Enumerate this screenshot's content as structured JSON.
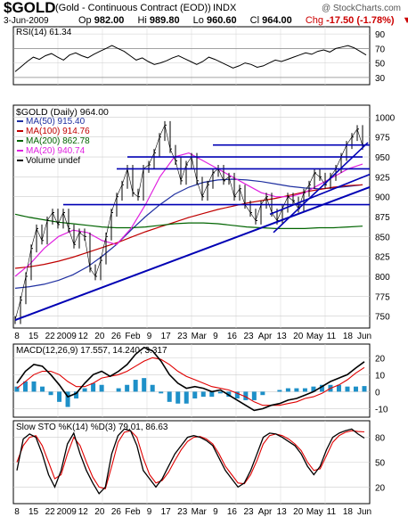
{
  "header": {
    "symbol": "$GOLD",
    "name": "(Gold - Continuous Contract (EOD))",
    "exchange": "INDX",
    "brand": "@ StockCharts.com",
    "date": "3-Jun-2009",
    "open_label": "Op",
    "open": "982.00",
    "high_label": "Hi",
    "high": "989.80",
    "low_label": "Lo",
    "low": "960.60",
    "close_label": "Cl",
    "close": "964.00",
    "change_label": "Chg",
    "change": "-17.50 (-1.78%)",
    "change_arrow": "▼"
  },
  "colors": {
    "price": "#000000",
    "ma50": "#1f2fa0",
    "ma100": "#c00000",
    "ma200": "#006400",
    "ma20": "#e020e0",
    "trendline": "#0000b4",
    "macd": "#000000",
    "signal": "#e00000",
    "histogram": "#1e90c8"
  },
  "chart_data": [
    {
      "type": "line",
      "title": "RSI(14) 61.34",
      "series": [
        {
          "name": "RSI(14)",
          "values": [
            38,
            45,
            52,
            58,
            55,
            60,
            63,
            58,
            54,
            61,
            64,
            60,
            57,
            62,
            66,
            70,
            74,
            70,
            66,
            60,
            54,
            57,
            52,
            48,
            50,
            53,
            57,
            60,
            56,
            52,
            48,
            52,
            58,
            55,
            51,
            47,
            43,
            46,
            50,
            48,
            44,
            46,
            50,
            54,
            52,
            55,
            58,
            61,
            64,
            62,
            66,
            68,
            65,
            70,
            72,
            74,
            71,
            66,
            61
          ]
        }
      ],
      "y_ticks": [
        90,
        70,
        50,
        30
      ],
      "ylim": [
        20,
        100
      ]
    },
    {
      "type": "line",
      "title": "$GOLD (Daily) 964.00",
      "legend": [
        "MA(50) 915.40",
        "MA(100) 914.76",
        "MA(200) 862.78",
        "MA(20) 940.74",
        "Volume undef"
      ],
      "x_labels": [
        "8",
        "15",
        "22",
        "2009",
        "12",
        "20",
        "26",
        "Feb",
        "9",
        "17",
        "23",
        "Mar",
        "9",
        "16",
        "23",
        "Apr",
        "13",
        "20",
        "May",
        "11",
        "18",
        "Jun"
      ],
      "y_ticks": [
        1000,
        975,
        950,
        925,
        900,
        875,
        850,
        825,
        800,
        775,
        750
      ],
      "ylim": [
        735,
        1015
      ],
      "series": [
        {
          "name": "$GOLD",
          "values": [
            745,
            770,
            800,
            835,
            860,
            845,
            870,
            880,
            865,
            880,
            860,
            840,
            855,
            850,
            810,
            800,
            820,
            850,
            880,
            900,
            915,
            935,
            905,
            900,
            935,
            940,
            955,
            975,
            990,
            960,
            945,
            920,
            940,
            950,
            920,
            900,
            915,
            930,
            935,
            920,
            925,
            900,
            910,
            890,
            880,
            870,
            890,
            900,
            880,
            870,
            885,
            900,
            895,
            885,
            905,
            915,
            930,
            925,
            915,
            925,
            935,
            950,
            965,
            975,
            985,
            964
          ]
        },
        {
          "name": "MA(50)",
          "values": [
            785,
            787,
            790,
            795,
            802,
            812,
            825,
            840,
            858,
            875,
            890,
            903,
            912,
            918,
            921,
            922,
            921,
            919,
            916,
            913,
            911,
            910,
            911,
            913,
            915
          ]
        },
        {
          "name": "MA(100)",
          "values": [
            810,
            812,
            815,
            819,
            824,
            830,
            836,
            842,
            849,
            856,
            862,
            868,
            874,
            879,
            884,
            888,
            892,
            895,
            898,
            902,
            906,
            909,
            912,
            914,
            915
          ]
        },
        {
          "name": "MA(200)",
          "values": [
            878,
            874,
            871,
            868,
            866,
            864,
            862,
            861,
            861,
            862,
            864,
            866,
            867,
            867,
            866,
            864,
            862,
            861,
            860,
            860,
            860,
            861,
            861,
            862,
            863
          ]
        },
        {
          "name": "MA(20)",
          "values": [
            800,
            815,
            835,
            850,
            858,
            855,
            845,
            840,
            860,
            890,
            925,
            950,
            955,
            945,
            935,
            925,
            915,
            905,
            900,
            900,
            905,
            915,
            925,
            935,
            941
          ]
        }
      ]
    },
    {
      "type": "line",
      "title": "MACD(12,26,9) 17.557, 14.240, 3.317",
      "series": [
        {
          "name": "MACD(12,26,9)",
          "values": [
            5,
            12,
            16,
            15,
            10,
            4,
            -3,
            -1,
            5,
            10,
            12,
            9,
            12,
            16,
            22,
            26,
            24,
            18,
            10,
            5,
            2,
            3,
            2,
            0,
            1,
            -2,
            -5,
            -8,
            -11,
            -10,
            -8,
            -7,
            -5,
            -4,
            -2,
            0,
            3,
            6,
            8,
            10,
            14,
            17.6
          ]
        },
        {
          "name": "Signal",
          "values": [
            2,
            6,
            10,
            12,
            12,
            10,
            6,
            3,
            3,
            5,
            8,
            9,
            10,
            12,
            15,
            18,
            20,
            19,
            16,
            12,
            9,
            7,
            5,
            3,
            2,
            1,
            -1,
            -3,
            -6,
            -8,
            -8,
            -8,
            -7,
            -6,
            -4,
            -3,
            -1,
            2,
            4,
            7,
            11,
            14.2
          ]
        }
      ],
      "histogram": [
        3,
        6,
        6,
        3,
        -2,
        -6,
        -9,
        -4,
        2,
        5,
        4,
        0,
        2,
        4,
        7,
        8,
        4,
        -1,
        -6,
        -7,
        -7,
        -4,
        -3,
        -3,
        -1,
        -3,
        -4,
        -5,
        -5,
        -2,
        0,
        1,
        2,
        2,
        2,
        3,
        4,
        4,
        4,
        3,
        3,
        3.3
      ],
      "y_ticks": [
        20,
        10,
        0,
        -10
      ],
      "ylim": [
        -15,
        28
      ]
    },
    {
      "type": "line",
      "title": "Slow STO %K(14) %D(3) 79.01, 86.63",
      "series": [
        {
          "name": "%K(14)",
          "values": [
            40,
            78,
            84,
            80,
            60,
            35,
            20,
            40,
            72,
            85,
            60,
            40,
            25,
            12,
            20,
            60,
            82,
            90,
            88,
            70,
            40,
            30,
            20,
            30,
            45,
            60,
            70,
            80,
            82,
            80,
            76,
            70,
            55,
            40,
            30,
            20,
            25,
            40,
            60,
            80,
            85,
            84,
            80,
            75,
            70,
            60,
            45,
            35,
            45,
            65,
            80,
            85,
            88,
            90,
            84,
            79
          ]
        },
        {
          "name": "%D(3)",
          "values": [
            50,
            70,
            80,
            82,
            70,
            50,
            30,
            35,
            60,
            80,
            70,
            50,
            32,
            20,
            18,
            45,
            74,
            86,
            88,
            80,
            55,
            35,
            25,
            28,
            38,
            52,
            65,
            75,
            80,
            81,
            78,
            72,
            60,
            45,
            35,
            25,
            24,
            35,
            52,
            72,
            82,
            84,
            82,
            78,
            72,
            64,
            50,
            40,
            42,
            58,
            74,
            82,
            86,
            88,
            87,
            86.6
          ]
        }
      ],
      "y_ticks": [
        80,
        50,
        20
      ],
      "ylim": [
        0,
        100
      ]
    }
  ]
}
